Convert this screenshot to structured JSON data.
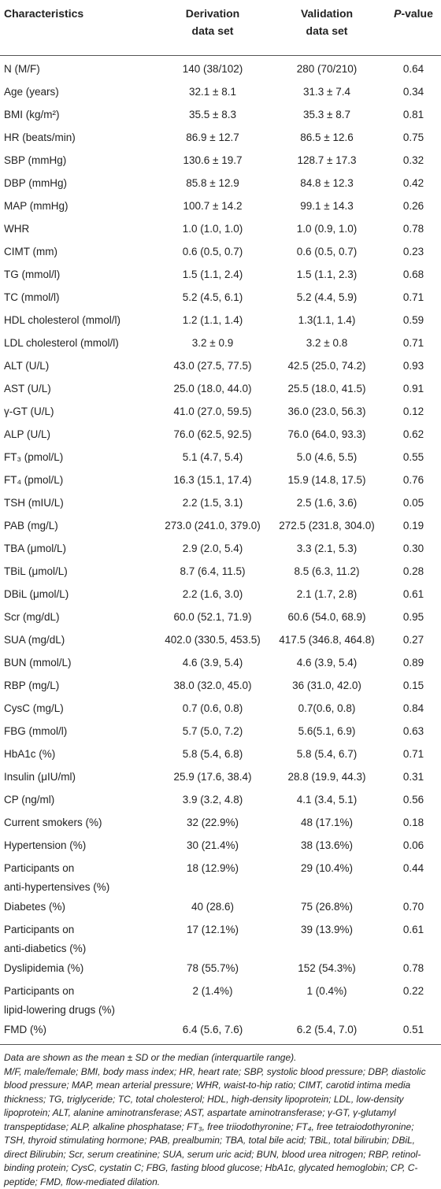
{
  "table": {
    "header": {
      "characteristics": "Characteristics",
      "derivation": "Derivation\ndata set",
      "validation": "Validation\ndata set",
      "p_value_italic": "P",
      "p_value_rest": "-value"
    },
    "rows": [
      [
        "N (M/F)",
        "140 (38/102)",
        "280 (70/210)",
        "0.64"
      ],
      [
        "Age (years)",
        "32.1 ± 8.1",
        "31.3 ± 7.4",
        "0.34"
      ],
      [
        "BMI (kg/m²)",
        "35.5 ± 8.3",
        "35.3 ± 8.7",
        "0.81"
      ],
      [
        "HR (beats/min)",
        "86.9 ± 12.7",
        "86.5 ± 12.6",
        "0.75"
      ],
      [
        "SBP (mmHg)",
        "130.6 ± 19.7",
        "128.7 ± 17.3",
        "0.32"
      ],
      [
        "DBP (mmHg)",
        "85.8 ± 12.9",
        "84.8 ± 12.3",
        "0.42"
      ],
      [
        "MAP (mmHg)",
        "100.7 ± 14.2",
        "99.1 ± 14.3",
        "0.26"
      ],
      [
        "WHR",
        "1.0 (1.0, 1.0)",
        "1.0 (0.9, 1.0)",
        "0.78"
      ],
      [
        "CIMT (mm)",
        "0.6 (0.5, 0.7)",
        "0.6 (0.5, 0.7)",
        "0.23"
      ],
      [
        "TG (mmol/l)",
        "1.5 (1.1, 2.4)",
        "1.5 (1.1, 2.3)",
        "0.68"
      ],
      [
        "TC (mmol/l)",
        "5.2 (4.5, 6.1)",
        "5.2 (4.4, 5.9)",
        "0.71"
      ],
      [
        "HDL cholesterol (mmol/l)",
        "1.2 (1.1, 1.4)",
        "1.3(1.1, 1.4)",
        "0.59"
      ],
      [
        "LDL cholesterol (mmol/l)",
        "3.2 ± 0.9",
        "3.2 ± 0.8",
        "0.71"
      ],
      [
        "ALT (U/L)",
        "43.0 (27.5, 77.5)",
        "42.5 (25.0, 74.2)",
        "0.93"
      ],
      [
        "AST (U/L)",
        "25.0 (18.0, 44.0)",
        "25.5 (18.0, 41.5)",
        "0.91"
      ],
      [
        "γ-GT (U/L)",
        "41.0 (27.0, 59.5)",
        "36.0 (23.0, 56.3)",
        "0.12"
      ],
      [
        "ALP (U/L)",
        "76.0 (62.5, 92.5)",
        "76.0 (64.0, 93.3)",
        "0.62"
      ],
      [
        "FT₃ (pmol/L)",
        "5.1 (4.7, 5.4)",
        "5.0 (4.6, 5.5)",
        "0.55"
      ],
      [
        "FT₄ (pmol/L)",
        "16.3 (15.1, 17.4)",
        "15.9 (14.8, 17.5)",
        "0.76"
      ],
      [
        "TSH (mIU/L)",
        "2.2 (1.5, 3.1)",
        "2.5 (1.6, 3.6)",
        "0.05"
      ],
      [
        "PAB (mg/L)",
        "273.0 (241.0, 379.0)",
        "272.5 (231.8, 304.0)",
        "0.19"
      ],
      [
        "TBA (μmol/L)",
        "2.9 (2.0, 5.4)",
        "3.3 (2.1, 5.3)",
        "0.30"
      ],
      [
        "TBiL (μmol/L)",
        "8.7 (6.4, 11.5)",
        "8.5 (6.3, 11.2)",
        "0.28"
      ],
      [
        "DBiL (μmol/L)",
        "2.2 (1.6, 3.0)",
        "2.1 (1.7, 2.8)",
        "0.61"
      ],
      [
        "Scr (mg/dL)",
        "60.0 (52.1, 71.9)",
        "60.6 (54.0, 68.9)",
        "0.95"
      ],
      [
        "SUA (mg/dL)",
        "402.0 (330.5, 453.5)",
        "417.5 (346.8, 464.8)",
        "0.27"
      ],
      [
        "BUN (mmol/L)",
        "4.6 (3.9, 5.4)",
        "4.6 (3.9, 5.4)",
        "0.89"
      ],
      [
        "RBP (mg/L)",
        "38.0 (32.0, 45.0)",
        "36 (31.0, 42.0)",
        "0.15"
      ],
      [
        "CysC (mg/L)",
        "0.7 (0.6, 0.8)",
        "0.7(0.6, 0.8)",
        "0.84"
      ],
      [
        "FBG (mmol/l)",
        "5.7 (5.0, 7.2)",
        "5.6(5.1, 6.9)",
        "0.63"
      ],
      [
        "HbA1c (%)",
        "5.8 (5.4, 6.8)",
        "5.8 (5.4, 6.7)",
        "0.71"
      ],
      [
        "Insulin (μIU/ml)",
        "25.9 (17.6, 38.4)",
        "28.8 (19.9, 44.3)",
        "0.31"
      ],
      [
        "CP (ng/ml)",
        "3.9 (3.2, 4.8)",
        "4.1 (3.4, 5.1)",
        "0.56"
      ],
      [
        "Current smokers (%)",
        "32 (22.9%)",
        "48 (17.1%)",
        "0.18"
      ],
      [
        "Hypertension (%)",
        "30 (21.4%)",
        "38 (13.6%)",
        "0.06"
      ],
      [
        "Participants on\nanti-hypertensives (%)",
        "18 (12.9%)",
        "29 (10.4%)",
        "0.44"
      ],
      [
        "Diabetes (%)",
        "40 (28.6)",
        "75 (26.8%)",
        "0.70"
      ],
      [
        "Participants on\nanti-diabetics (%)",
        "17 (12.1%)",
        "39 (13.9%)",
        "0.61"
      ],
      [
        "Dyslipidemia (%)",
        "78 (55.7%)",
        "152 (54.3%)",
        "0.78"
      ],
      [
        "Participants on\nlipid-lowering drugs (%)",
        "2 (1.4%)",
        "1 (0.4%)",
        "0.22"
      ],
      [
        "FMD (%)",
        "6.4 (5.6, 7.6)",
        "6.2 (5.4, 7.0)",
        "0.51"
      ]
    ],
    "footnotes": [
      "Data are shown as the mean ± SD or the median (interquartile range).",
      "M/F, male/female; BMI, body mass index; HR, heart rate; SBP, systolic blood pressure; DBP, diastolic blood pressure; MAP, mean arterial pressure; WHR, waist-to-hip ratio; CIMT, carotid intima media thickness; TG, triglyceride; TC, total cholesterol; HDL, high-density lipoprotein; LDL, low-density lipoprotein; ALT, alanine aminotransferase; AST, aspartate aminotransferase; γ-GT, γ-glutamyl transpeptidase; ALP, alkaline phosphatase; FT₃, free triiodothyronine; FT₄, free tetraiodothyronine; TSH, thyroid stimulating hormone; PAB, prealbumin; TBA, total bile acid; TBiL, total bilirubin; DBiL, direct Bilirubin; Scr, serum creatinine; SUA, serum uric acid; BUN, blood urea nitrogen; RBP, retinol-binding protein; CysC, cystatin C; FBG, fasting blood glucose; HbA1c, glycated hemoglobin; CP, C-peptide; FMD, flow-mediated dilation."
    ]
  }
}
